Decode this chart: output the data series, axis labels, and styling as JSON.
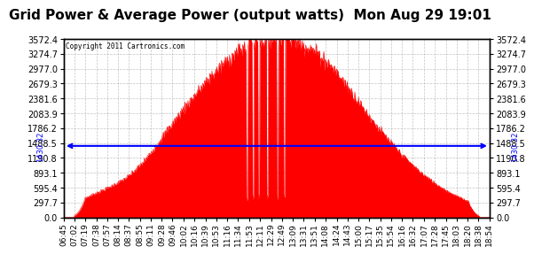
{
  "title": "Grid Power & Average Power (output watts)  Mon Aug 29 19:01",
  "copyright": "Copyright 2011 Cartronics.com",
  "average_value": 1430.32,
  "yticks": [
    0.0,
    297.7,
    595.4,
    893.1,
    1190.8,
    1488.5,
    1786.2,
    2083.9,
    2381.6,
    2679.3,
    2977.0,
    3274.7,
    3572.4
  ],
  "ymax": 3572.4,
  "fill_color": "#FF0000",
  "line_color": "#FF0000",
  "avg_line_color": "#0000FF",
  "bg_color": "#FFFFFF",
  "grid_color": "#AAAAAA",
  "title_fontsize": 11,
  "xlabel_fontsize": 6.5,
  "ylabel_fontsize": 7,
  "xtick_labels": [
    "06:45",
    "07:02",
    "07:19",
    "07:38",
    "07:57",
    "08:14",
    "08:37",
    "08:55",
    "09:11",
    "09:28",
    "09:46",
    "10:02",
    "10:16",
    "10:39",
    "10:53",
    "11:16",
    "11:34",
    "11:53",
    "12:11",
    "12:29",
    "12:49",
    "13:09",
    "13:31",
    "13:51",
    "14:08",
    "14:24",
    "14:43",
    "15:00",
    "15:17",
    "15:35",
    "15:54",
    "16:16",
    "16:32",
    "17:07",
    "17:28",
    "17:45",
    "18:03",
    "18:20",
    "18:38",
    "18:54"
  ]
}
